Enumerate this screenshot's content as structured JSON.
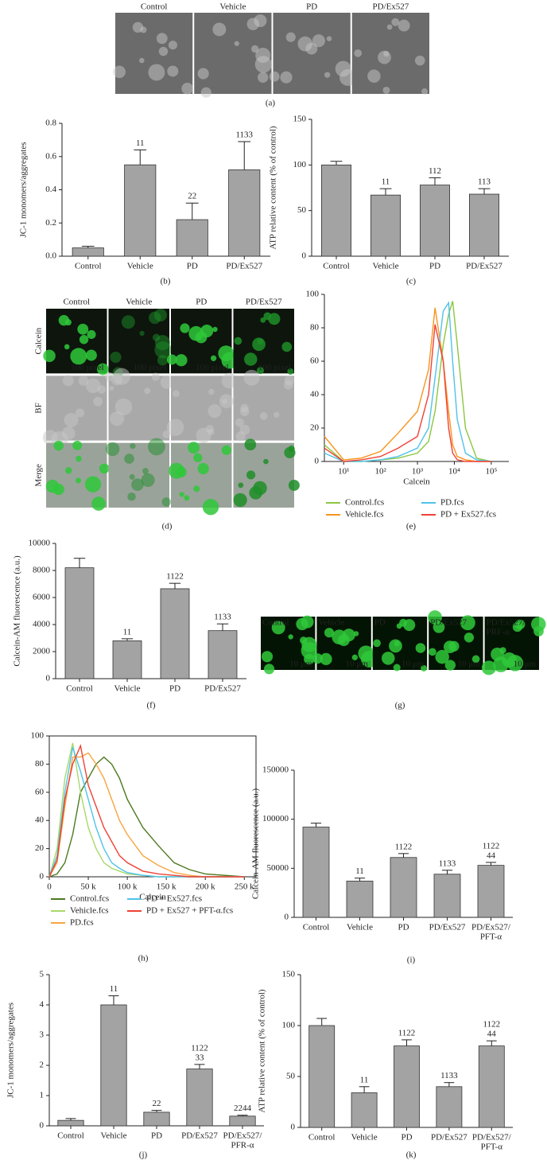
{
  "chart_data": [
    {
      "type": "image",
      "label": "(a)",
      "columns": [
        "Control",
        "Vehicle",
        "PD",
        "PD/Ex527"
      ],
      "rows": [
        {
          "color": "#6b6b6b"
        }
      ]
    },
    {
      "type": "bar",
      "label": "(b)",
      "ylabel": "JC-1 monomers/aggregates",
      "categories": [
        "Control",
        "Vehicle",
        "PD",
        "PD/Ex527"
      ],
      "values": [
        0.05,
        0.55,
        0.22,
        0.52
      ],
      "errors": [
        0.01,
        0.09,
        0.1,
        0.17
      ],
      "annotations": [
        null,
        "11",
        "22",
        "1133"
      ],
      "ylim": [
        0,
        0.8
      ],
      "yticks": [
        {
          "value": 0,
          "label": "0.0"
        },
        0.2,
        0.4,
        0.6,
        0.8
      ],
      "color": "#a3a3a3"
    },
    {
      "type": "bar",
      "label": "(c)",
      "ylabel": "ATP relative content (% of control)",
      "categories": [
        "Control",
        "Vehicle",
        "PD",
        "PD/Ex527"
      ],
      "values": [
        100,
        67,
        78,
        68
      ],
      "errors": [
        4,
        7,
        8,
        6
      ],
      "annotations": [
        null,
        "11",
        "112",
        "113"
      ],
      "ylim": [
        0,
        150
      ],
      "yticks": [
        0,
        50,
        100,
        150
      ],
      "color": "#a3a3a3"
    },
    {
      "type": "image",
      "label": "(d)",
      "columns": [
        "Control",
        "Vehicle",
        "PD",
        "PD/Ex527"
      ],
      "scale": "100 pixel",
      "rows": [
        {
          "name": "Calcein",
          "color": "#0d150d",
          "green": true
        },
        {
          "name": "BF",
          "color": "#a9a9a9"
        },
        {
          "name": "Merge",
          "color": "#9aa39a",
          "green": true
        }
      ]
    },
    {
      "type": "line",
      "label": "(e)",
      "xlabel": "Calcein",
      "xscale": "log",
      "xlim": [
        3,
        300000
      ],
      "xticks": [
        {
          "value": 10,
          "label": "10¹"
        },
        {
          "value": 100,
          "label": "10²"
        },
        {
          "value": 1000,
          "label": "10³"
        },
        {
          "value": 10000,
          "label": "10⁴"
        },
        {
          "value": 100000,
          "label": "10⁵"
        }
      ],
      "ylim": [
        0,
        100
      ],
      "yticks": [
        0,
        20,
        40,
        60,
        80,
        100
      ],
      "x": [
        3,
        10,
        30,
        100,
        300,
        1000,
        2000,
        3000,
        5000,
        7000,
        9000,
        12000,
        20000,
        40000,
        100000
      ],
      "series": [
        {
          "name": "Control.fcs",
          "color": "#8cc63f",
          "values": [
            10,
            0,
            0,
            1,
            2,
            5,
            12,
            30,
            70,
            88,
            96,
            70,
            20,
            2,
            0
          ]
        },
        {
          "name": "Vehicle.fcs",
          "color": "#f7941d",
          "values": [
            15,
            1,
            2,
            6,
            17,
            30,
            55,
            92,
            60,
            30,
            10,
            3,
            1,
            0,
            0
          ]
        },
        {
          "name": "PD.fcs",
          "color": "#4fc3e8",
          "values": [
            5,
            0,
            0,
            1,
            3,
            8,
            20,
            50,
            90,
            95,
            60,
            25,
            5,
            1,
            0
          ]
        },
        {
          "name": "PD + Ex527.fcs",
          "color": "#ef4136",
          "values": [
            8,
            0,
            1,
            3,
            8,
            15,
            40,
            82,
            60,
            20,
            5,
            1,
            0,
            0,
            0
          ]
        }
      ]
    },
    {
      "type": "bar",
      "label": "(f)",
      "ylabel": "Calcein-AM fluorescence (a.u.)",
      "categories": [
        "Control",
        "Vehicle",
        "PD",
        "PD/Ex527"
      ],
      "values": [
        8200,
        2800,
        6650,
        3550
      ],
      "errors": [
        700,
        150,
        400,
        500
      ],
      "annotations": [
        null,
        "11",
        "1122",
        "1133"
      ],
      "ylim": [
        0,
        10000
      ],
      "yticks": [
        0,
        2000,
        4000,
        6000,
        8000,
        10000
      ],
      "color": "#a3a3a3"
    },
    {
      "type": "image",
      "label": "(g)",
      "columns": [
        "Control",
        "Vehicle",
        "PD",
        "PD/Ex527",
        [
          "PD/Ex527/",
          "PRF-α"
        ]
      ],
      "scale": "10 μm",
      "rows": [
        {
          "color": "#041404",
          "green": true
        }
      ]
    },
    {
      "type": "line",
      "label": "(h)",
      "xlabel": "Calcein",
      "xlim": [
        0,
        265000
      ],
      "xticks": [
        0,
        {
          "value": 50000,
          "label": "50 k"
        },
        {
          "value": 100000,
          "label": "100 k"
        },
        {
          "value": 150000,
          "label": "150 k"
        },
        {
          "value": 200000,
          "label": "200 k"
        },
        {
          "value": 250000,
          "label": "250 k"
        }
      ],
      "ylim": [
        0,
        100
      ],
      "yticks": [
        0,
        20,
        40,
        60,
        80,
        100
      ],
      "x": [
        0,
        10000,
        20000,
        30000,
        40000,
        50000,
        60000,
        70000,
        80000,
        90000,
        100000,
        120000,
        140000,
        160000,
        180000,
        200000,
        250000
      ],
      "series": [
        {
          "name": "Control.fcs",
          "color": "#4d7a1f",
          "values": [
            0,
            2,
            10,
            30,
            60,
            70,
            80,
            85,
            80,
            70,
            55,
            35,
            22,
            10,
            5,
            2,
            0
          ]
        },
        {
          "name": "Vehicle.fcs",
          "color": "#a8d86a",
          "values": [
            0,
            20,
            70,
            95,
            60,
            35,
            20,
            10,
            6,
            4,
            2,
            1,
            0,
            0,
            0,
            0,
            0
          ]
        },
        {
          "name": "PD.fcs",
          "color": "#f7a540",
          "values": [
            0,
            10,
            50,
            85,
            85,
            88,
            80,
            70,
            55,
            40,
            30,
            15,
            8,
            3,
            1,
            0,
            0
          ]
        },
        {
          "name": "PD + Ex527.fcs",
          "color": "#4fc3e8",
          "values": [
            0,
            15,
            60,
            92,
            75,
            55,
            35,
            20,
            10,
            6,
            3,
            1,
            0,
            0,
            0,
            0,
            0
          ]
        },
        {
          "name": "PD + Ex527 + PFT-α.fcs",
          "color": "#ef4136",
          "values": [
            0,
            12,
            55,
            80,
            93,
            65,
            50,
            35,
            25,
            15,
            10,
            4,
            2,
            1,
            0,
            0,
            0
          ]
        }
      ]
    },
    {
      "type": "bar",
      "label": "(i)",
      "ylabel": "Calcein-AM fluorescence (a.u.)",
      "categories": [
        "Control",
        "Vehicle",
        "PD",
        "PD/Ex527",
        [
          "PD/Ex527/",
          "PFT-α"
        ]
      ],
      "values": [
        92000,
        37000,
        61000,
        44000,
        53000
      ],
      "errors": [
        4000,
        3000,
        4000,
        4000,
        3000
      ],
      "annotations": [
        null,
        "11",
        "1122",
        "1133",
        [
          "1122",
          "44"
        ]
      ],
      "ylim": [
        0,
        150000
      ],
      "yticks": [
        0,
        50000,
        100000,
        150000
      ],
      "color": "#a3a3a3"
    },
    {
      "type": "bar",
      "label": "(j)",
      "ylabel": "JC-1 monomers/aggregates",
      "categories": [
        "Control",
        "Vehicle",
        "PD",
        "PD/Ex527",
        [
          "PD/Ex527/",
          "PFR-α"
        ]
      ],
      "values": [
        0.18,
        4.0,
        0.45,
        1.88,
        0.32
      ],
      "errors": [
        0.06,
        0.3,
        0.06,
        0.15,
        0.03
      ],
      "annotations": [
        null,
        "11",
        "22",
        [
          "1122",
          "33"
        ],
        "2244"
      ],
      "ylim": [
        0,
        5
      ],
      "yticks": [
        0,
        1,
        2,
        3,
        4,
        5
      ],
      "color": "#a3a3a3"
    },
    {
      "type": "bar",
      "label": "(k)",
      "ylabel": "ATP relative content (% of control)",
      "categories": [
        "Control",
        "Vehicle",
        "PD",
        "PD/Ex527",
        [
          "PD/Ex527/",
          "PFT-α"
        ]
      ],
      "values": [
        100,
        34,
        80,
        40,
        80
      ],
      "errors": [
        7,
        6,
        6,
        4,
        5
      ],
      "annotations": [
        null,
        "11",
        "1122",
        "1133",
        [
          "1122",
          "44"
        ]
      ],
      "ylim": [
        0,
        150
      ],
      "yticks": [
        0,
        50,
        100,
        150
      ],
      "color": "#a3a3a3"
    }
  ]
}
